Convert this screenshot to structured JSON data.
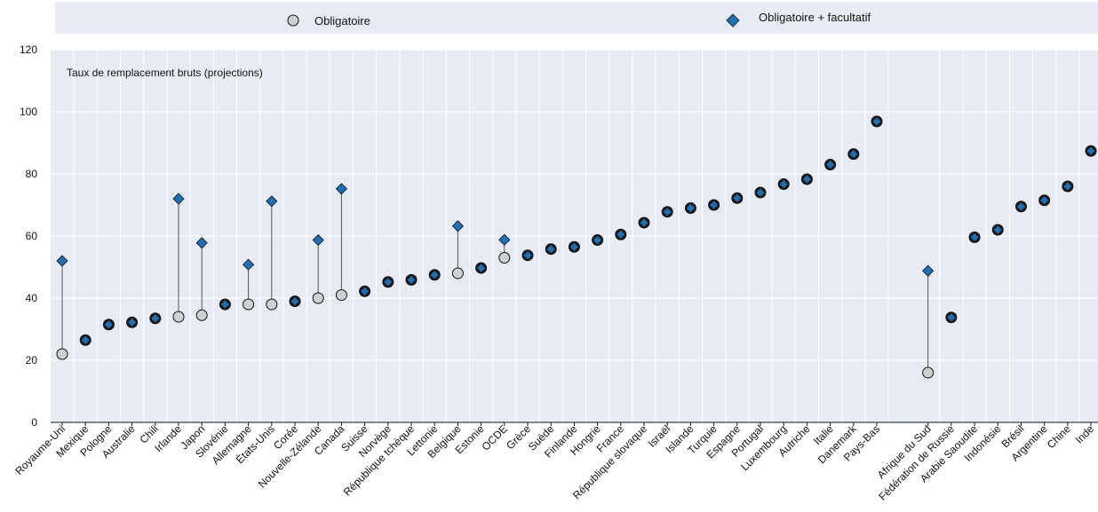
{
  "legend": {
    "mandatory_label": "Obligatoire",
    "total_label": "Obligatoire + facultatif"
  },
  "colors": {
    "panel_bg": "#e7ecf4",
    "legend_bg": "#e7ecf4",
    "grid": "#ffffff",
    "mandatory_fill": "#cfd0d2",
    "marker_stroke": "#111111",
    "total_fill": "#1f6fb2",
    "connector": "#555555"
  },
  "chart_data": {
    "type": "scatter",
    "annotation": "Taux de remplacement bruts (projections)",
    "ylim": [
      0,
      120
    ],
    "yticks": [
      0,
      20,
      40,
      60,
      80,
      100,
      120
    ],
    "grid": true,
    "legend_position": "top",
    "groups": [
      {
        "categories": [
          "Royaume-Uni",
          "Mexique",
          "Pologne",
          "Australie",
          "Chili",
          "Irlande",
          "Japon",
          "Slovénie",
          "Allemagne",
          "États-Unis",
          "Corée",
          "Nouvelle-Zélande",
          "Canada",
          "Suisse",
          "Norvège",
          "République tchèque",
          "Lettonie",
          "Belgique",
          "Estonie",
          "OCDE",
          "Grèce",
          "Suède",
          "Finlande",
          "Hongrie",
          "France",
          "République slovaque",
          "Israël",
          "Islande",
          "Turquie",
          "Espagne",
          "Portugal",
          "Luxembourg",
          "Autriche",
          "Italie",
          "Danemark",
          "Pays-Bas"
        ],
        "series": [
          {
            "name": "Obligatoire",
            "values": [
              22,
              26.5,
              31.5,
              32.2,
              33.5,
              34,
              34.5,
              38,
              38,
              38,
              39,
              40,
              41,
              42.2,
              45.2,
              45.9,
              47.5,
              48,
              49.7,
              53,
              53.8,
              55.8,
              56.5,
              58.7,
              60.5,
              64.3,
              67.8,
              69,
              70,
              72.2,
              74,
              76.7,
              78.3,
              83,
              86.4,
              96.9
            ]
          },
          {
            "name": "Obligatoire + facultatif",
            "values": [
              52,
              26.5,
              31.5,
              32.2,
              33.5,
              72,
              57.8,
              38,
              50.8,
              71.2,
              39,
              58.7,
              75.2,
              42.2,
              45.2,
              45.9,
              47.5,
              63.2,
              49.7,
              58.8,
              53.8,
              55.8,
              56.5,
              58.7,
              60.5,
              64.3,
              67.8,
              69,
              70,
              72.2,
              74,
              76.7,
              78.3,
              83,
              86.4,
              96.9
            ]
          }
        ]
      },
      {
        "categories": [
          "Afrique du Sud",
          "Fédération de Russie",
          "Arabie Saoudite",
          "Indonésie",
          "Brésil",
          "Argentine",
          "Chine",
          "Inde"
        ],
        "series": [
          {
            "name": "Obligatoire",
            "values": [
              16,
              33.8,
              59.6,
              62,
              69.5,
              71.5,
              76,
              87.4
            ]
          },
          {
            "name": "Obligatoire + facultatif",
            "values": [
              48.8,
              33.8,
              59.6,
              62,
              69.5,
              71.5,
              76,
              87.4
            ]
          }
        ]
      }
    ]
  }
}
